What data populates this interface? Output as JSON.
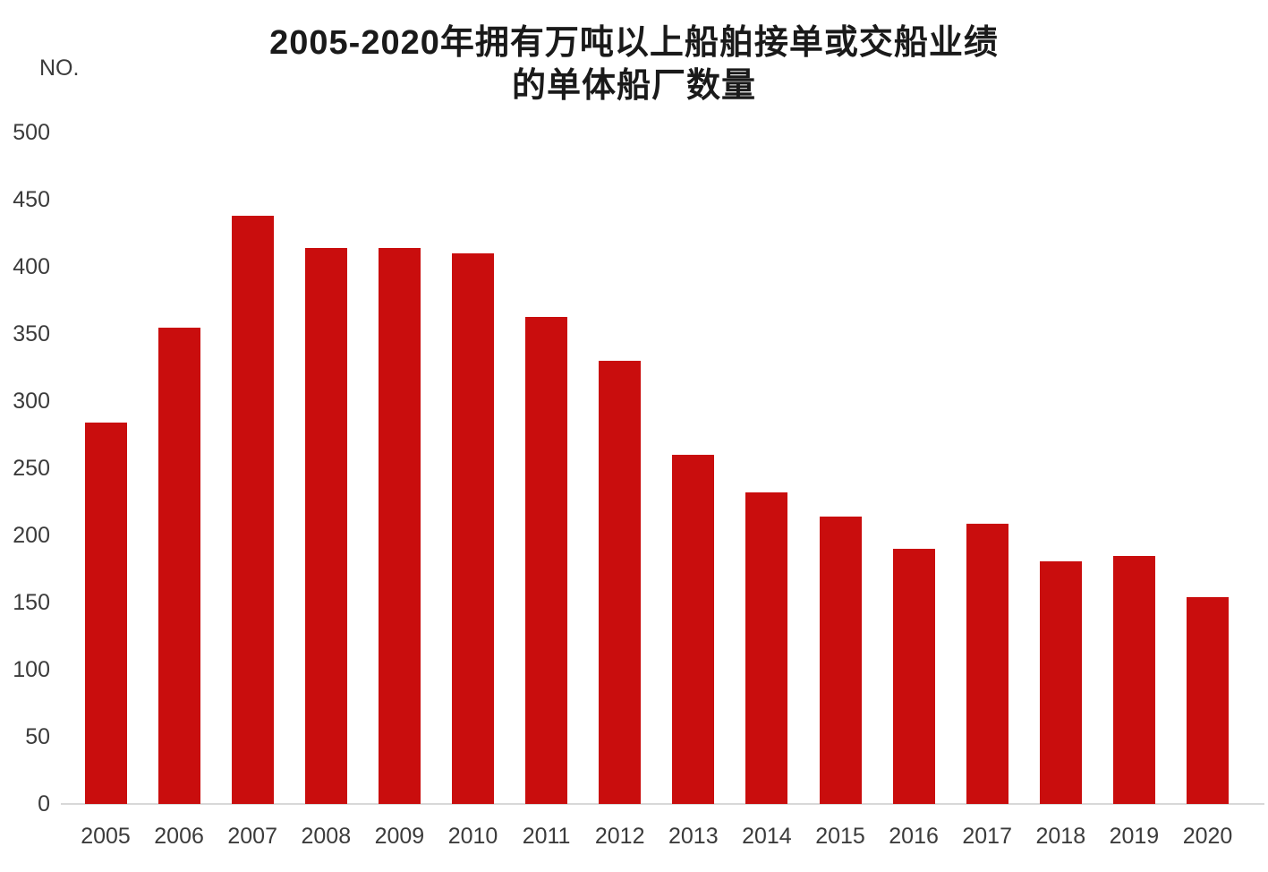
{
  "chart_data": {
    "type": "bar",
    "title": "2005-2020年拥有万吨以上船舶接单或交船业绩的单体船厂数量",
    "title_line1": "2005-2020年拥有万吨以上船舶接单或交船业绩",
    "title_line2": "的单体船厂数量",
    "unit_label": "NO.",
    "categories": [
      "2005",
      "2006",
      "2007",
      "2008",
      "2009",
      "2010",
      "2011",
      "2012",
      "2013",
      "2014",
      "2015",
      "2016",
      "2017",
      "2018",
      "2019",
      "2020"
    ],
    "values": [
      284,
      355,
      438,
      414,
      414,
      410,
      363,
      330,
      260,
      232,
      214,
      190,
      209,
      181,
      185,
      154
    ],
    "y_ticks": [
      0,
      50,
      100,
      150,
      200,
      250,
      300,
      350,
      400,
      450,
      500
    ],
    "ylim": [
      0,
      500
    ],
    "xlabel": "",
    "ylabel": "NO.",
    "grid": "off",
    "legend": "none",
    "colors": {
      "bar": "#c90d0d",
      "axis_line": "#d8d8d8",
      "tick_label": "#3b3b3b",
      "title": "#1a1a1a"
    }
  }
}
